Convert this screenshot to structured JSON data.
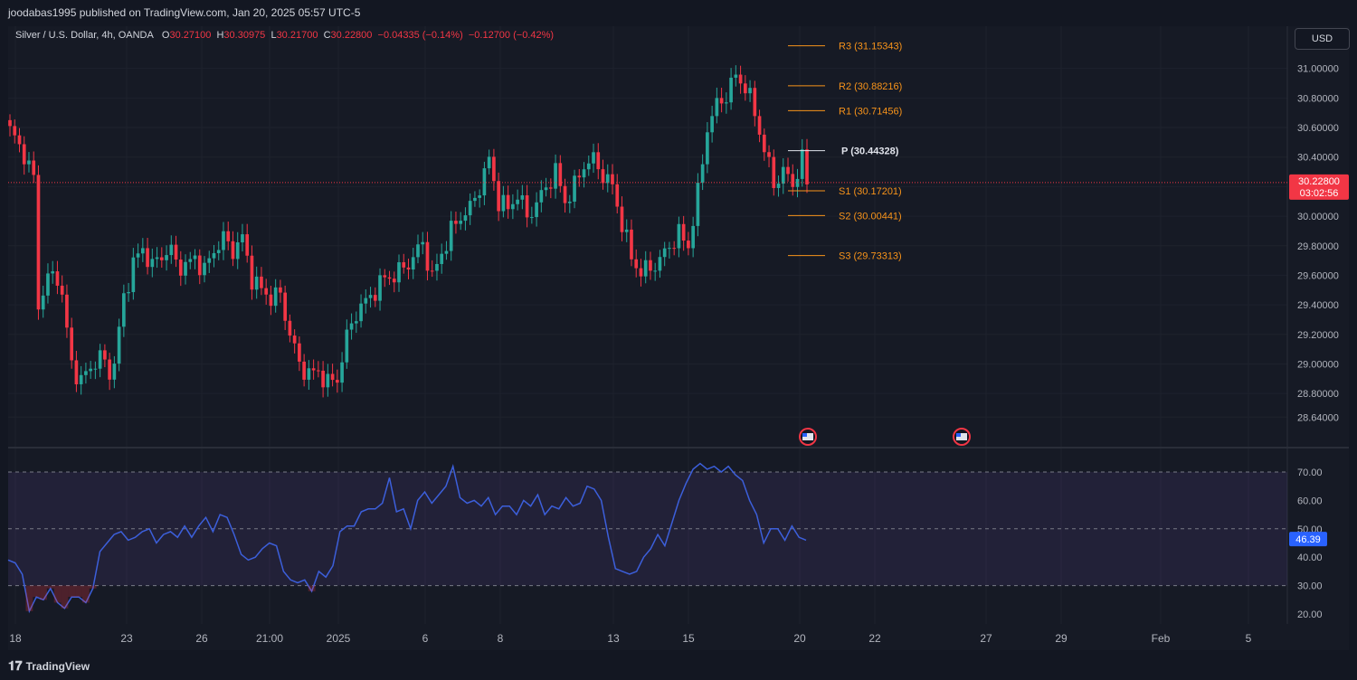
{
  "header": {
    "published_text": "joodabas1995 published on TradingView.com, Jan 20, 2025 05:57 UTC-5"
  },
  "legend": {
    "symbol": "Silver / U.S. Dollar, 4h, OANDA",
    "o_label": "O",
    "o_value": "30.27100",
    "h_label": "H",
    "h_value": "30.30975",
    "l_label": "L",
    "l_value": "30.21700",
    "c_label": "C",
    "c_value": "30.22800",
    "change": "−0.04335 (−0.14%)",
    "change2": "−0.12700 (−0.42%)"
  },
  "currency_button": "USD",
  "footer": {
    "brand": "TradingView"
  },
  "colors": {
    "up": "#26a69a",
    "down": "#f23645",
    "pivot_line": "#f7931a",
    "pivot_p": "#e0e3eb",
    "rsi": "#3c5fdb",
    "rsi_badge": "#2962ff",
    "price_badge": "#f23645"
  },
  "chart_data": [
    {
      "type": "candlestick",
      "title": "Silver / U.S. Dollar, 4h, OANDA",
      "ylim": [
        28.55,
        31.2
      ],
      "y_ticks": [
        "31.00000",
        "30.80000",
        "30.60000",
        "30.40000",
        "30.20000",
        "30.00000",
        "29.80000",
        "29.60000",
        "29.40000",
        "29.20000",
        "29.00000",
        "28.80000",
        "28.64000"
      ],
      "x_ticks": [
        "18",
        "23",
        "26",
        "21:00",
        "2025",
        "6",
        "8",
        "13",
        "15",
        "20",
        "22",
        "27",
        "29",
        "Feb",
        "5"
      ],
      "last_price": "30.22800",
      "countdown": "03:02:56",
      "pivots": [
        {
          "label": "R3",
          "value": "31.15343"
        },
        {
          "label": "R2",
          "value": "30.88216"
        },
        {
          "label": "R1",
          "value": "30.71456"
        },
        {
          "label": "P",
          "value": "30.44328"
        },
        {
          "label": "S1",
          "value": "30.17201"
        },
        {
          "label": "S2",
          "value": "30.00441"
        },
        {
          "label": "S3",
          "value": "29.73313"
        }
      ],
      "close_anchors": [
        [
          0,
          30.58
        ],
        [
          3,
          30.42
        ],
        [
          5,
          30.25
        ],
        [
          6,
          29.4
        ],
        [
          8,
          29.58
        ],
        [
          10,
          29.6
        ],
        [
          11,
          29.45
        ],
        [
          13,
          29.0
        ],
        [
          15,
          28.88
        ],
        [
          17,
          28.98
        ],
        [
          19,
          29.05
        ],
        [
          21,
          28.95
        ],
        [
          22,
          29.0
        ],
        [
          24,
          29.45
        ],
        [
          26,
          29.68
        ],
        [
          28,
          29.78
        ],
        [
          30,
          29.66
        ],
        [
          32,
          29.74
        ],
        [
          34,
          29.77
        ],
        [
          35,
          29.68
        ],
        [
          37,
          29.66
        ],
        [
          39,
          29.72
        ],
        [
          41,
          29.63
        ],
        [
          43,
          29.77
        ],
        [
          45,
          29.85
        ],
        [
          47,
          29.77
        ],
        [
          49,
          29.85
        ],
        [
          51,
          29.58
        ],
        [
          53,
          29.5
        ],
        [
          55,
          29.45
        ],
        [
          57,
          29.47
        ],
        [
          59,
          29.2
        ],
        [
          61,
          29.0
        ],
        [
          63,
          28.93
        ],
        [
          65,
          28.95
        ],
        [
          67,
          28.87
        ],
        [
          69,
          28.9
        ],
        [
          71,
          29.18
        ],
        [
          73,
          29.35
        ],
        [
          75,
          29.42
        ],
        [
          77,
          29.5
        ],
        [
          79,
          29.58
        ],
        [
          81,
          29.6
        ],
        [
          83,
          29.65
        ],
        [
          85,
          29.72
        ],
        [
          87,
          29.82
        ],
        [
          89,
          29.58
        ],
        [
          91,
          29.75
        ],
        [
          93,
          29.9
        ],
        [
          95,
          30.0
        ],
        [
          97,
          30.05
        ],
        [
          99,
          30.2
        ],
        [
          101,
          30.38
        ],
        [
          103,
          30.1
        ],
        [
          105,
          30.05
        ],
        [
          107,
          30.15
        ],
        [
          109,
          30.0
        ],
        [
          111,
          30.08
        ],
        [
          113,
          30.2
        ],
        [
          115,
          30.3
        ],
        [
          117,
          30.1
        ],
        [
          119,
          30.2
        ],
        [
          121,
          30.35
        ],
        [
          123,
          30.38
        ],
        [
          125,
          30.28
        ],
        [
          127,
          30.2
        ],
        [
          129,
          29.95
        ],
        [
          131,
          29.72
        ],
        [
          133,
          29.62
        ],
        [
          135,
          29.65
        ],
        [
          137,
          29.7
        ],
        [
          139,
          29.8
        ],
        [
          141,
          29.88
        ],
        [
          143,
          29.8
        ],
        [
          145,
          30.15
        ],
        [
          147,
          30.6
        ],
        [
          149,
          30.75
        ],
        [
          151,
          30.82
        ],
        [
          153,
          30.95
        ],
        [
          155,
          30.88
        ],
        [
          157,
          30.7
        ],
        [
          159,
          30.45
        ],
        [
          161,
          30.22
        ],
        [
          163,
          30.3
        ],
        [
          165,
          30.22
        ],
        [
          167,
          30.38
        ],
        [
          168,
          30.23
        ]
      ],
      "events": [
        {
          "day": "20",
          "icon": "us-flag"
        },
        {
          "day": "24",
          "icon": "us-flag"
        }
      ]
    },
    {
      "type": "line",
      "title": "RSI",
      "ylim": [
        17,
        74
      ],
      "y_ticks": [
        "70.00",
        "60.00",
        "50.00",
        "40.00",
        "30.00",
        "20.00"
      ],
      "bands": {
        "upper": 70,
        "middle": 50,
        "lower": 30
      },
      "last_value": "46.39",
      "series": [
        {
          "values": [
            39,
            38,
            34,
            21,
            26,
            25,
            29,
            24,
            22,
            26,
            26,
            24,
            29,
            42,
            45,
            48,
            49,
            46,
            47,
            49,
            50,
            45,
            48,
            49,
            47,
            51,
            47,
            51,
            54,
            49,
            55,
            54,
            48,
            41,
            39,
            40,
            43,
            45,
            44,
            35,
            32,
            31,
            32,
            28,
            35,
            33,
            37,
            49,
            51,
            51,
            56,
            57,
            57,
            59,
            68,
            56,
            57,
            50,
            60,
            63,
            59,
            62,
            65,
            72,
            61,
            59,
            60,
            58,
            61,
            55,
            58,
            58,
            55,
            60,
            58,
            62,
            55,
            58,
            57,
            61,
            58,
            59,
            65,
            64,
            60,
            47,
            36,
            35,
            34,
            35,
            40,
            43,
            48,
            44,
            52,
            60,
            66,
            71,
            73,
            71,
            72,
            70,
            72,
            69,
            67,
            60,
            55,
            45,
            50,
            50,
            46,
            51,
            47,
            46
          ]
        }
      ]
    }
  ]
}
